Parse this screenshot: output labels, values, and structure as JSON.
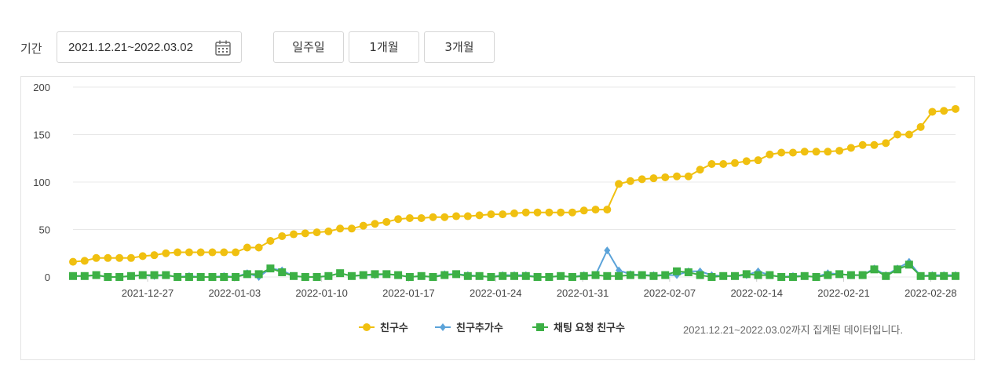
{
  "controls": {
    "period_label": "기간",
    "date_range_value": "2021.12.21~2022.03.02",
    "buttons": [
      "일주일",
      "1개월",
      "3개월"
    ]
  },
  "legend": {
    "note": "2021.12.21~2022.03.02까지 집계된 데이터입니다."
  },
  "colors": {
    "friends": "#f0c010",
    "added": "#5ba3d9",
    "chat": "#3cb045"
  },
  "chart_data": {
    "type": "line",
    "x_start": "2021-12-21",
    "x_end": "2022-03-02",
    "x_tick_labels": [
      "2021-12-27",
      "2022-01-03",
      "2022-01-10",
      "2022-01-17",
      "2022-01-24",
      "2022-01-31",
      "2022-02-07",
      "2022-02-14",
      "2022-02-21",
      "2022-02-28"
    ],
    "y_ticks": [
      0,
      50,
      100,
      150,
      200
    ],
    "ylim": [
      0,
      200
    ],
    "grid": true,
    "legend_position": "bottom",
    "series": [
      {
        "name": "친구수",
        "color": "#f0c010",
        "marker": "circle",
        "values": [
          16,
          17,
          20,
          20,
          20,
          20,
          22,
          23,
          25,
          26,
          26,
          26,
          26,
          26,
          26,
          31,
          31,
          38,
          43,
          45,
          46,
          47,
          48,
          51,
          51,
          54,
          56,
          58,
          61,
          62,
          62,
          63,
          63,
          64,
          64,
          65,
          66,
          66,
          67,
          68,
          68,
          68,
          68,
          68,
          70,
          71,
          71,
          98,
          101,
          103,
          104,
          105,
          106,
          106,
          113,
          119,
          119,
          120,
          122,
          123,
          129,
          131,
          131,
          132,
          132,
          132,
          133,
          136,
          139,
          139,
          141,
          150,
          150,
          158,
          174,
          175,
          177
        ]
      },
      {
        "name": "친구추가수",
        "color": "#5ba3d9",
        "marker": "diamond",
        "values": [
          1,
          1,
          2,
          0,
          0,
          1,
          2,
          1,
          2,
          0,
          1,
          0,
          0,
          1,
          0,
          4,
          0,
          9,
          7,
          1,
          0,
          0,
          1,
          4,
          1,
          2,
          2,
          3,
          2,
          0,
          1,
          0,
          3,
          3,
          2,
          1,
          0,
          2,
          2,
          2,
          0,
          0,
          1,
          0,
          2,
          2,
          28,
          7,
          3,
          2,
          2,
          2,
          2,
          6,
          6,
          2,
          1,
          1,
          2,
          6,
          2,
          0,
          1,
          1,
          0,
          4,
          3,
          2,
          2,
          9,
          2,
          9,
          16,
          1,
          2,
          2,
          2
        ]
      },
      {
        "name": "채팅 요청 친구수",
        "color": "#3cb045",
        "marker": "square",
        "values": [
          1,
          1,
          2,
          0,
          0,
          1,
          2,
          2,
          2,
          0,
          0,
          0,
          0,
          0,
          0,
          3,
          3,
          9,
          5,
          1,
          0,
          0,
          1,
          4,
          1,
          2,
          3,
          3,
          2,
          0,
          1,
          0,
          2,
          3,
          1,
          1,
          0,
          1,
          1,
          1,
          0,
          0,
          1,
          0,
          1,
          2,
          1,
          1,
          2,
          2,
          1,
          2,
          6,
          5,
          2,
          0,
          1,
          1,
          3,
          2,
          2,
          0,
          0,
          1,
          0,
          2,
          3,
          2,
          2,
          8,
          1,
          8,
          13,
          1,
          1,
          1,
          1
        ]
      }
    ]
  }
}
